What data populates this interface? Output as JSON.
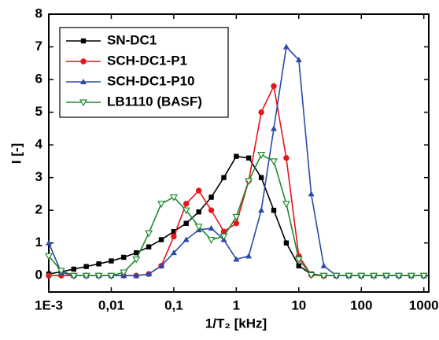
{
  "chart_data": {
    "type": "line",
    "x_label": "1/T₂ [kHz]",
    "y_label": "I [-]",
    "log_x": true,
    "x": [
      0.001,
      0.00158,
      0.00251,
      0.00398,
      0.00631,
      0.01,
      0.0158,
      0.0251,
      0.0398,
      0.0631,
      0.1,
      0.158,
      0.251,
      0.398,
      0.631,
      1,
      1.58,
      2.51,
      3.98,
      6.31,
      10,
      15.8,
      25.1,
      39.8,
      63.1,
      100,
      158,
      251,
      398,
      631,
      1000
    ],
    "xlim": [
      0.001,
      1200
    ],
    "xticks": [
      {
        "value": 0.001,
        "label": "1E-3"
      },
      {
        "value": 0.01,
        "label": "0,01"
      },
      {
        "value": 0.1,
        "label": "0,1"
      },
      1,
      10,
      100,
      1000
    ],
    "ylim": [
      -0.5,
      8
    ],
    "yticks": [
      0,
      1,
      2,
      3,
      4,
      5,
      6,
      7,
      8
    ],
    "legend": "top-left",
    "series": [
      {
        "name": "SN-DC1",
        "color": "#000000",
        "marker": "square",
        "values": [
          0.05,
          0.12,
          0.2,
          0.28,
          0.36,
          0.45,
          0.56,
          0.7,
          0.88,
          1.1,
          1.35,
          1.6,
          1.95,
          2.4,
          3.0,
          3.65,
          3.6,
          3.0,
          2.0,
          1.0,
          0.3,
          0.05,
          0,
          0,
          0,
          0,
          0,
          0,
          0,
          0,
          0
        ]
      },
      {
        "name": "SCH-DC1-P1",
        "color": "#e8141c",
        "marker": "circle",
        "values": [
          0,
          0,
          0,
          0,
          0,
          0,
          0,
          0,
          0.05,
          0.3,
          1.2,
          2.2,
          2.6,
          2.0,
          1.35,
          1.6,
          2.9,
          5.0,
          5.8,
          3.6,
          0.6,
          0.02,
          0,
          0,
          0,
          0,
          0,
          0,
          0,
          0,
          0
        ]
      },
      {
        "name": "SCH-DC1-P10",
        "color": "#2b4aa8",
        "marker": "triangle-up",
        "values": [
          1.0,
          0.1,
          0,
          0,
          0,
          0,
          0,
          0,
          0.05,
          0.3,
          0.7,
          1.1,
          1.4,
          1.45,
          1.1,
          0.5,
          0.6,
          2.0,
          4.5,
          7.0,
          6.6,
          2.5,
          0.3,
          0,
          0,
          0,
          0,
          0,
          0,
          0,
          0
        ]
      },
      {
        "name": "LB1110 (BASF)",
        "color": "#1f8a2e",
        "marker": "triangle-down-open",
        "values": [
          0.6,
          0.15,
          0,
          0,
          0,
          0,
          0.1,
          0.5,
          1.3,
          2.2,
          2.4,
          2.0,
          1.5,
          1.1,
          1.2,
          1.8,
          2.9,
          3.7,
          3.5,
          2.2,
          0.5,
          0.02,
          0,
          0,
          0,
          0,
          0,
          0,
          0,
          0,
          0
        ]
      }
    ]
  }
}
